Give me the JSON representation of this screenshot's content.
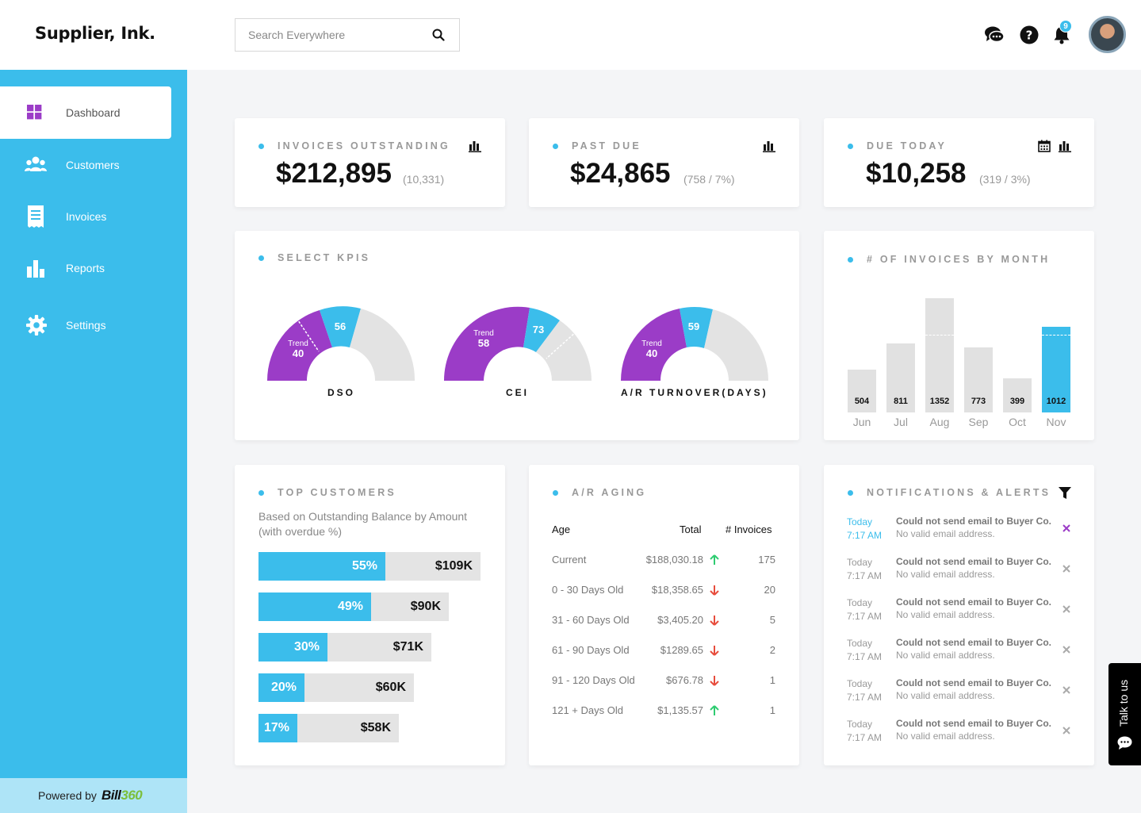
{
  "header": {
    "logo": "Supplier, Ink.",
    "search_placeholder": "Search Everywhere",
    "notification_count": "9"
  },
  "sidebar": {
    "items": [
      {
        "label": "Dashboard",
        "icon": "dashboard-icon"
      },
      {
        "label": "Customers",
        "icon": "customers-icon"
      },
      {
        "label": "Invoices",
        "icon": "invoice-icon"
      },
      {
        "label": "Reports",
        "icon": "reports-icon"
      },
      {
        "label": "Settings",
        "icon": "gear-icon"
      }
    ],
    "powered_by": "Powered by",
    "brand_a": "Bill",
    "brand_b": "360"
  },
  "summary": {
    "outstanding": {
      "title": "INVOICES OUTSTANDING",
      "value": "$212,895",
      "sub": "(10,331)"
    },
    "past_due": {
      "title": "PAST DUE",
      "value": "$24,865",
      "sub": "(758 / 7%)"
    },
    "due_today": {
      "title": "DUE TODAY",
      "value": "$10,258",
      "sub": "(319 / 3%)"
    }
  },
  "kpis": {
    "title": "SELECT KPIS",
    "trend_label": "Trend",
    "gauges": [
      {
        "label": "DSO",
        "trend": "40",
        "value": "56"
      },
      {
        "label": "CEI",
        "trend": "58",
        "value": "73"
      },
      {
        "label": "A/R TURNOVER(DAYS)",
        "trend": "40",
        "value": "59"
      }
    ]
  },
  "monthly": {
    "title": "# OF INVOICES BY MONTH",
    "chart_data": {
      "type": "bar",
      "categories": [
        "Jun",
        "Jul",
        "Aug",
        "Sep",
        "Oct",
        "Nov"
      ],
      "values": [
        504,
        811,
        1352,
        773,
        399,
        1012
      ],
      "highlight": "Nov",
      "colors": {
        "bar": "#e1e1e1",
        "highlight": "#3bbdeb"
      }
    }
  },
  "top_customers": {
    "title": "TOP CUSTOMERS",
    "subtitle": "Based on Outstanding Balance by Amount (with overdue %)",
    "rows": [
      {
        "pct": "55%",
        "amount": "$109K",
        "overdue": 0.55
      },
      {
        "pct": "49%",
        "amount": "$90K",
        "overdue": 0.49
      },
      {
        "pct": "30%",
        "amount": "$71K",
        "overdue": 0.3
      },
      {
        "pct": "20%",
        "amount": "$60K",
        "overdue": 0.2
      },
      {
        "pct": "17%",
        "amount": "$58K",
        "overdue": 0.17
      }
    ]
  },
  "aging": {
    "title": "A/R AGING",
    "headers": {
      "age": "Age",
      "total": "Total",
      "invoices": "# Invoices"
    },
    "rows": [
      {
        "age": "Current",
        "total": "$188,030.18",
        "trend": "up",
        "count": "175"
      },
      {
        "age": "0 - 30 Days Old",
        "total": "$18,358.65",
        "trend": "down",
        "count": "20"
      },
      {
        "age": "31 - 60 Days Old",
        "total": "$3,405.20",
        "trend": "down",
        "count": "5"
      },
      {
        "age": "61 - 90 Days Old",
        "total": "$1289.65",
        "trend": "down",
        "count": "2"
      },
      {
        "age": "91 - 120 Days Old",
        "total": "$676.78",
        "trend": "down",
        "count": "1"
      },
      {
        "age": "121 + Days Old",
        "total": "$1,135.57",
        "trend": "up",
        "count": "1"
      }
    ]
  },
  "notifications": {
    "title": "NOTIFICATIONS & ALERTS",
    "items": [
      {
        "day": "Today",
        "time": "7:17 AM",
        "title": "Could not send email to Buyer Co.",
        "detail": "No valid email address.",
        "new": true
      },
      {
        "day": "Today",
        "time": "7:17 AM",
        "title": "Could not send email to Buyer Co.",
        "detail": "No valid email address.",
        "new": false
      },
      {
        "day": "Today",
        "time": "7:17 AM",
        "title": "Could not send email to Buyer Co.",
        "detail": "No valid email address.",
        "new": false
      },
      {
        "day": "Today",
        "time": "7:17 AM",
        "title": "Could not send email to Buyer Co.",
        "detail": "No valid email address.",
        "new": false
      },
      {
        "day": "Today",
        "time": "7:17 AM",
        "title": "Could not send email to Buyer Co.",
        "detail": "No valid email address.",
        "new": false
      },
      {
        "day": "Today",
        "time": "7:17 AM",
        "title": "Could not send email to Buyer Co.",
        "detail": "No valid email address.",
        "new": false
      }
    ]
  },
  "talk": {
    "label": "Talk to us"
  },
  "colors": {
    "accent": "#3bbdeb",
    "purple": "#9b3cc7",
    "up": "#2ecc71",
    "down": "#e74c3c"
  }
}
